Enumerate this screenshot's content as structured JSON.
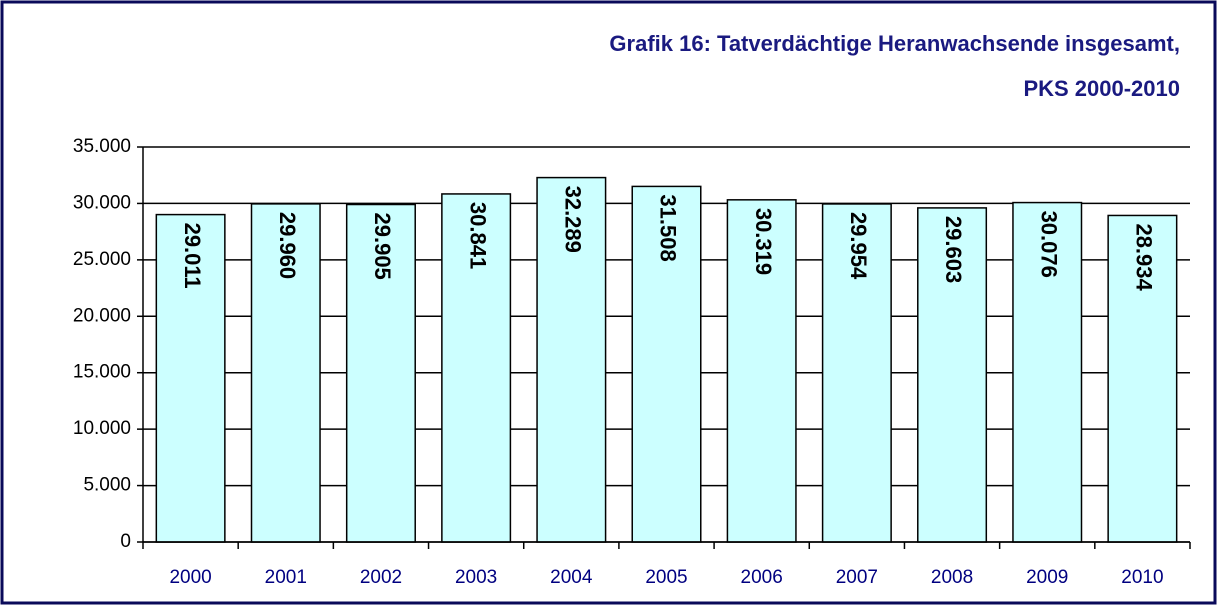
{
  "chart_data": {
    "type": "bar",
    "title": [
      "Grafik 16: Tatverdächtige Heranwachsende insgesamt,",
      "PKS 2000-2010"
    ],
    "categories": [
      "2000",
      "2001",
      "2002",
      "2003",
      "2004",
      "2005",
      "2006",
      "2007",
      "2008",
      "2009",
      "2010"
    ],
    "values": [
      29011,
      29960,
      29905,
      30841,
      32289,
      31508,
      30319,
      29954,
      29603,
      30076,
      28934
    ],
    "value_labels": [
      "29.011",
      "29.960",
      "29.905",
      "30.841",
      "32.289",
      "31.508",
      "30.319",
      "29.954",
      "29.603",
      "30.076",
      "28.934"
    ],
    "color": "#ccffff",
    "ylim": [
      0,
      35000
    ],
    "yticks": [
      0,
      {
        "value": 5000,
        "label": "5.000"
      },
      {
        "value": 10000,
        "label": "10.000"
      },
      {
        "value": 15000,
        "label": "15.000"
      },
      {
        "value": 20000,
        "label": "20.000"
      },
      {
        "value": 25000,
        "label": "25.000"
      },
      {
        "value": 30000,
        "label": "30.000"
      },
      {
        "value": 35000,
        "label": "35.000"
      }
    ],
    "grid": true
  }
}
